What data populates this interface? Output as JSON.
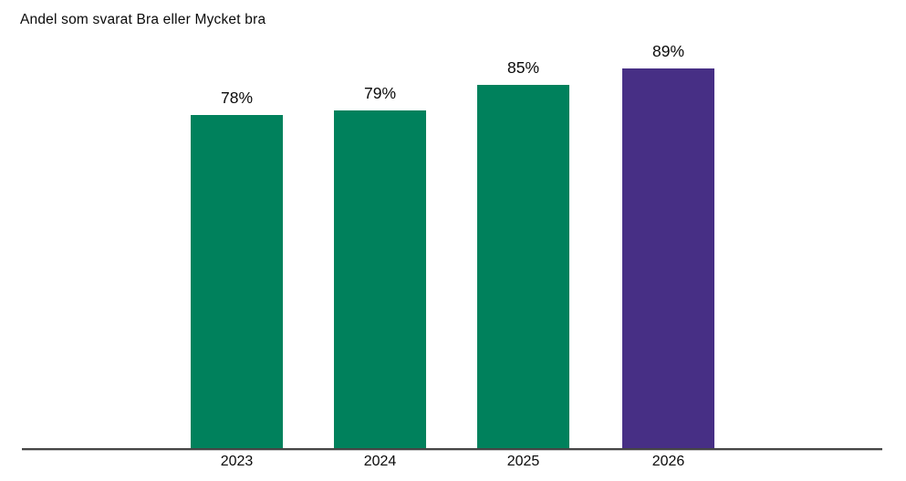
{
  "title": "Andel som svarat Bra eller Mycket bra",
  "colors": {
    "bar_green": "#00815C",
    "bar_purple": "#472F85",
    "axis_line": "#454545",
    "text": "#0A0A0A",
    "background": "#FFFFFF"
  },
  "chart_data": {
    "type": "bar",
    "title": "Andel som svarat Bra eller Mycket bra",
    "categories": [
      "2023",
      "2024",
      "2025",
      "2026"
    ],
    "values": [
      78,
      79,
      85,
      89
    ],
    "value_labels": [
      "78%",
      "79%",
      "85%",
      "89%"
    ],
    "bar_colors": [
      "#00815C",
      "#00815C",
      "#00815C",
      "#472F85"
    ],
    "xlabel": "",
    "ylabel": "",
    "ylim": [
      0,
      100
    ],
    "unit": "%",
    "grid": false,
    "legend": "none",
    "value_labels_position": "above-bars",
    "x_axis_line": true,
    "y_axis_ticks_shown": false
  }
}
